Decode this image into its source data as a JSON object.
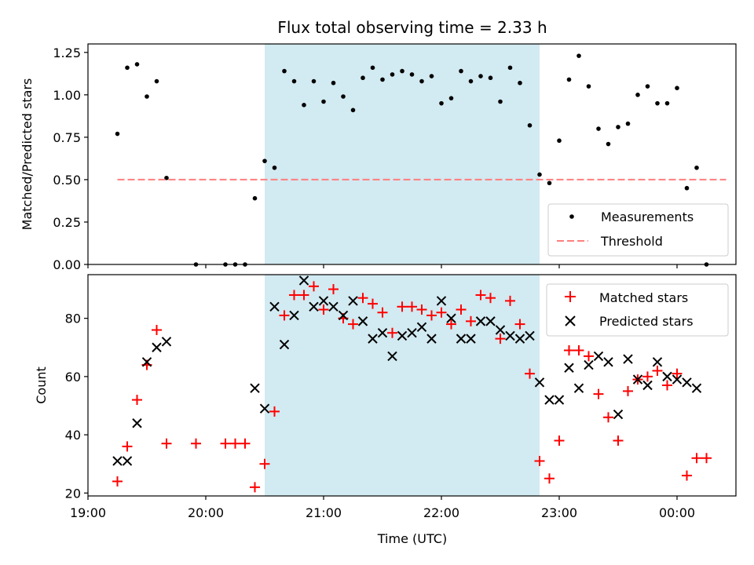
{
  "chart_data": [
    {
      "type": "scatter",
      "title": "Flux total observing time = 2.33 h",
      "xlabel": "",
      "ylabel": "Matched/Predicted stars",
      "xlim": [
        "19:00",
        "00:30"
      ],
      "ylim": [
        0,
        1.3
      ],
      "yticks": [
        "0.00",
        "0.25",
        "0.50",
        "0.75",
        "1.00",
        "1.25"
      ],
      "shaded_region": {
        "start": "20:30",
        "end": "22:50",
        "color": "#add8e6"
      },
      "threshold": {
        "value": 0.5,
        "start": "19:15",
        "end": "00:25"
      },
      "series": [
        {
          "name": "Measurements",
          "marker": "dot",
          "color": "#000000",
          "points": [
            [
              "19:15",
              0.77
            ],
            [
              "19:20",
              1.16
            ],
            [
              "19:25",
              1.18
            ],
            [
              "19:30",
              0.99
            ],
            [
              "19:35",
              1.08
            ],
            [
              "19:40",
              0.51
            ],
            [
              "19:55",
              0.0
            ],
            [
              "20:10",
              0.0
            ],
            [
              "20:15",
              0.0
            ],
            [
              "20:20",
              0.0
            ],
            [
              "20:25",
              0.39
            ],
            [
              "20:30",
              0.61
            ],
            [
              "20:35",
              0.57
            ],
            [
              "20:40",
              1.14
            ],
            [
              "20:45",
              1.08
            ],
            [
              "20:50",
              0.94
            ],
            [
              "20:55",
              1.08
            ],
            [
              "21:00",
              0.96
            ],
            [
              "21:05",
              1.07
            ],
            [
              "21:10",
              0.99
            ],
            [
              "21:15",
              0.91
            ],
            [
              "21:20",
              1.1
            ],
            [
              "21:25",
              1.16
            ],
            [
              "21:30",
              1.09
            ],
            [
              "21:35",
              1.12
            ],
            [
              "21:40",
              1.14
            ],
            [
              "21:45",
              1.12
            ],
            [
              "21:50",
              1.08
            ],
            [
              "21:55",
              1.11
            ],
            [
              "22:00",
              0.95
            ],
            [
              "22:05",
              0.98
            ],
            [
              "22:10",
              1.14
            ],
            [
              "22:15",
              1.08
            ],
            [
              "22:20",
              1.11
            ],
            [
              "22:25",
              1.1
            ],
            [
              "22:30",
              0.96
            ],
            [
              "22:35",
              1.16
            ],
            [
              "22:40",
              1.07
            ],
            [
              "22:45",
              0.82
            ],
            [
              "22:50",
              0.53
            ],
            [
              "22:55",
              0.48
            ],
            [
              "23:00",
              0.73
            ],
            [
              "23:05",
              1.09
            ],
            [
              "23:10",
              1.23
            ],
            [
              "23:15",
              1.05
            ],
            [
              "23:20",
              0.8
            ],
            [
              "23:25",
              0.71
            ],
            [
              "23:30",
              0.81
            ],
            [
              "23:35",
              0.83
            ],
            [
              "23:40",
              1.0
            ],
            [
              "23:45",
              1.05
            ],
            [
              "23:50",
              0.95
            ],
            [
              "23:55",
              0.95
            ],
            [
              "24:00",
              1.04
            ],
            [
              "24:05",
              0.45
            ],
            [
              "24:10",
              0.57
            ],
            [
              "24:15",
              0.0
            ]
          ]
        },
        {
          "name": "Threshold",
          "line_style": "dashed",
          "color": "#ff7f7f",
          "points": [
            [
              "19:15",
              0.5
            ],
            [
              "24:25",
              0.5
            ]
          ]
        }
      ],
      "legend": {
        "placement": "lower-right",
        "entries": [
          "Measurements",
          "Threshold"
        ]
      }
    },
    {
      "type": "scatter",
      "title": "",
      "xlabel": "Time (UTC)",
      "ylabel": "Count",
      "xlim": [
        "19:00",
        "00:30"
      ],
      "ylim": [
        19,
        95
      ],
      "xticks": [
        "19:00",
        "20:00",
        "21:00",
        "22:00",
        "23:00",
        "00:00"
      ],
      "yticks": [
        "20",
        "40",
        "60",
        "80"
      ],
      "shaded_region": {
        "start": "20:30",
        "end": "22:50",
        "color": "#add8e6"
      },
      "series": [
        {
          "name": "Matched stars",
          "marker": "plus",
          "color": "#ff0000",
          "points": [
            [
              "19:15",
              24
            ],
            [
              "19:20",
              36
            ],
            [
              "19:25",
              52
            ],
            [
              "19:30",
              64
            ],
            [
              "19:35",
              76
            ],
            [
              "19:40",
              37
            ],
            [
              "19:55",
              37
            ],
            [
              "20:10",
              37
            ],
            [
              "20:15",
              37
            ],
            [
              "20:20",
              37
            ],
            [
              "20:25",
              22
            ],
            [
              "20:30",
              30
            ],
            [
              "20:35",
              48
            ],
            [
              "20:40",
              81
            ],
            [
              "20:45",
              88
            ],
            [
              "20:50",
              88
            ],
            [
              "20:55",
              91
            ],
            [
              "21:00",
              83
            ],
            [
              "21:05",
              90
            ],
            [
              "21:10",
              80
            ],
            [
              "21:15",
              78
            ],
            [
              "21:20",
              87
            ],
            [
              "21:25",
              85
            ],
            [
              "21:30",
              82
            ],
            [
              "21:35",
              75
            ],
            [
              "21:40",
              84
            ],
            [
              "21:45",
              84
            ],
            [
              "21:50",
              83
            ],
            [
              "21:55",
              81
            ],
            [
              "22:00",
              82
            ],
            [
              "22:05",
              78
            ],
            [
              "22:10",
              83
            ],
            [
              "22:15",
              79
            ],
            [
              "22:20",
              88
            ],
            [
              "22:25",
              87
            ],
            [
              "22:30",
              73
            ],
            [
              "22:35",
              86
            ],
            [
              "22:40",
              78
            ],
            [
              "22:45",
              61
            ],
            [
              "22:50",
              31
            ],
            [
              "22:55",
              25
            ],
            [
              "23:00",
              38
            ],
            [
              "23:05",
              69
            ],
            [
              "23:10",
              69
            ],
            [
              "23:15",
              67
            ],
            [
              "23:20",
              54
            ],
            [
              "23:25",
              46
            ],
            [
              "23:30",
              38
            ],
            [
              "23:35",
              55
            ],
            [
              "23:40",
              59
            ],
            [
              "23:45",
              60
            ],
            [
              "23:50",
              62
            ],
            [
              "23:55",
              57
            ],
            [
              "24:00",
              61
            ],
            [
              "24:05",
              26
            ],
            [
              "24:10",
              32
            ],
            [
              "24:15",
              32
            ]
          ]
        },
        {
          "name": "Predicted stars",
          "marker": "x",
          "color": "#000000",
          "points": [
            [
              "19:15",
              31
            ],
            [
              "19:20",
              31
            ],
            [
              "19:25",
              44
            ],
            [
              "19:30",
              65
            ],
            [
              "19:35",
              70
            ],
            [
              "19:40",
              72
            ],
            [
              "20:25",
              56
            ],
            [
              "20:30",
              49
            ],
            [
              "20:35",
              84
            ],
            [
              "20:40",
              71
            ],
            [
              "20:45",
              81
            ],
            [
              "20:50",
              93
            ],
            [
              "20:55",
              84
            ],
            [
              "21:00",
              86
            ],
            [
              "21:05",
              84
            ],
            [
              "21:10",
              81
            ],
            [
              "21:15",
              86
            ],
            [
              "21:20",
              79
            ],
            [
              "21:25",
              73
            ],
            [
              "21:30",
              75
            ],
            [
              "21:35",
              67
            ],
            [
              "21:40",
              74
            ],
            [
              "21:45",
              75
            ],
            [
              "21:50",
              77
            ],
            [
              "21:55",
              73
            ],
            [
              "22:00",
              86
            ],
            [
              "22:05",
              80
            ],
            [
              "22:10",
              73
            ],
            [
              "22:15",
              73
            ],
            [
              "22:20",
              79
            ],
            [
              "22:25",
              79
            ],
            [
              "22:30",
              76
            ],
            [
              "22:35",
              74
            ],
            [
              "22:40",
              73
            ],
            [
              "22:45",
              74
            ],
            [
              "22:50",
              58
            ],
            [
              "22:55",
              52
            ],
            [
              "23:00",
              52
            ],
            [
              "23:05",
              63
            ],
            [
              "23:10",
              56
            ],
            [
              "23:15",
              64
            ],
            [
              "23:20",
              67
            ],
            [
              "23:25",
              65
            ],
            [
              "23:30",
              47
            ],
            [
              "23:35",
              66
            ],
            [
              "23:40",
              59
            ],
            [
              "23:45",
              57
            ],
            [
              "23:50",
              65
            ],
            [
              "23:55",
              60
            ],
            [
              "24:00",
              59
            ],
            [
              "24:05",
              58
            ],
            [
              "24:10",
              56
            ]
          ]
        }
      ],
      "legend": {
        "placement": "upper-right",
        "entries": [
          "Matched stars",
          "Predicted stars"
        ]
      }
    }
  ]
}
